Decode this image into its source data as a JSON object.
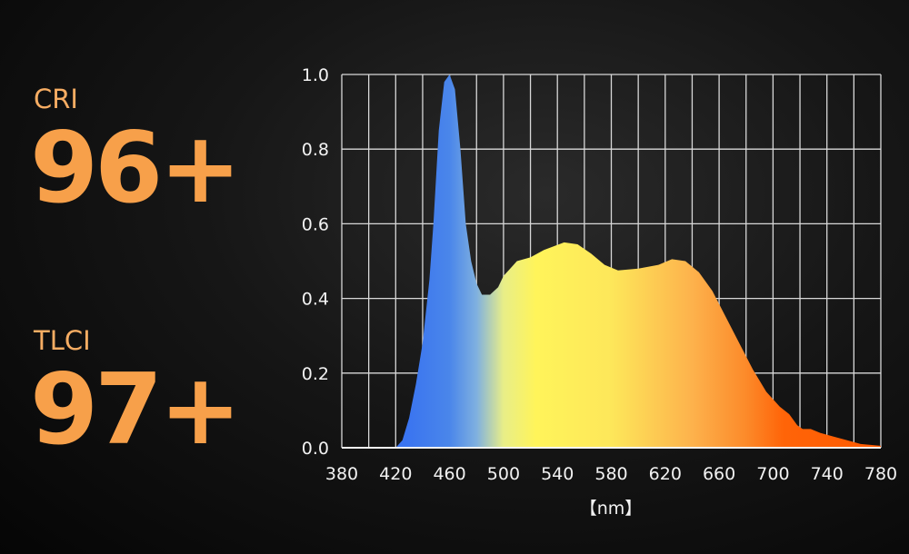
{
  "metrics": [
    {
      "label": "CRI",
      "value": "96+"
    },
    {
      "label": "TLCI",
      "value": "97+"
    }
  ],
  "accent_color": "#f7a04a",
  "chart_data": {
    "type": "area",
    "title": "",
    "xlabel": "【nm】",
    "ylabel": "",
    "xlim": [
      380,
      780
    ],
    "ylim": [
      0,
      1.0
    ],
    "x_ticks": [
      380,
      420,
      460,
      500,
      540,
      580,
      620,
      660,
      700,
      740,
      780
    ],
    "x_tick_labels": [
      "380",
      "420",
      "460",
      "500",
      "540",
      "580",
      "620",
      "660",
      "700",
      "740",
      "780"
    ],
    "y_ticks": [
      0,
      0.2,
      0.4,
      0.6,
      0.8,
      1.0
    ],
    "y_tick_labels": [
      "0.0",
      "0.2",
      "0.4",
      "0.6",
      "0.8",
      "1.0"
    ],
    "grid": true,
    "x_grid_step": 20,
    "fill": "spectral gradient (blue to yellow to orange-red)",
    "x": [
      380,
      420,
      425,
      430,
      435,
      440,
      445,
      448,
      452,
      456,
      460,
      464,
      468,
      472,
      476,
      480,
      484,
      490,
      496,
      500,
      505,
      510,
      520,
      530,
      545,
      555,
      565,
      575,
      585,
      600,
      615,
      625,
      635,
      645,
      655,
      665,
      675,
      685,
      695,
      705,
      712,
      718,
      722,
      728,
      735,
      745,
      755,
      765,
      780
    ],
    "y": [
      0,
      0,
      0.02,
      0.08,
      0.17,
      0.28,
      0.45,
      0.6,
      0.85,
      0.98,
      1.0,
      0.96,
      0.8,
      0.6,
      0.5,
      0.44,
      0.41,
      0.41,
      0.43,
      0.46,
      0.48,
      0.5,
      0.51,
      0.53,
      0.55,
      0.545,
      0.52,
      0.49,
      0.475,
      0.48,
      0.49,
      0.505,
      0.5,
      0.47,
      0.42,
      0.35,
      0.28,
      0.21,
      0.15,
      0.11,
      0.09,
      0.06,
      0.05,
      0.05,
      0.04,
      0.03,
      0.02,
      0.01,
      0.005
    ]
  }
}
